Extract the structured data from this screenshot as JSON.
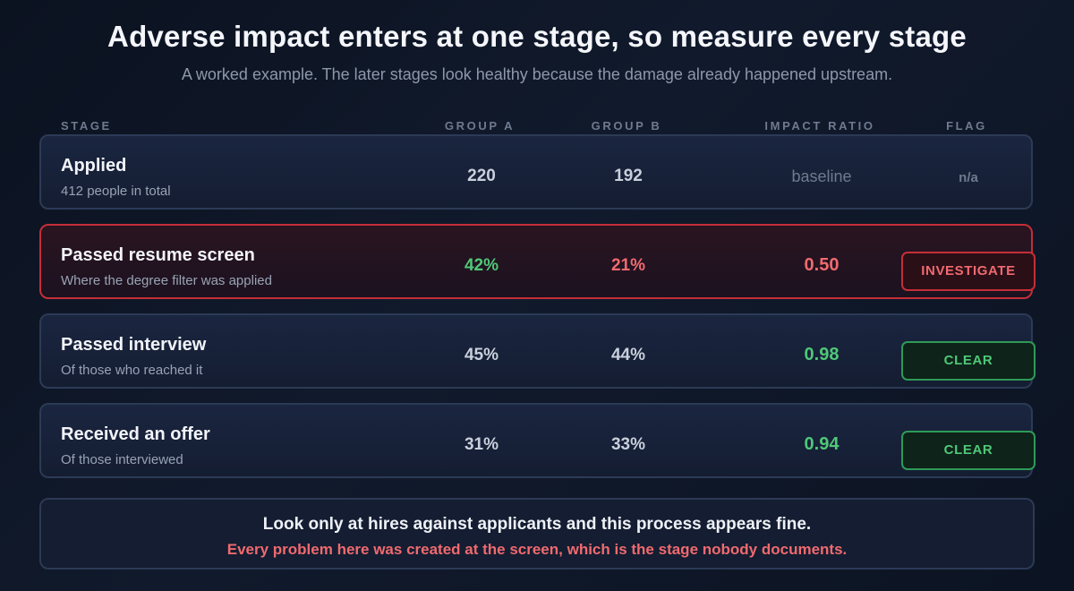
{
  "header": {
    "title": "Adverse impact enters at one stage, so measure every stage",
    "subtitle": "A worked example. The later stages look healthy because the damage already happened upstream."
  },
  "columns": {
    "stage": "STAGE",
    "group_a": "GROUP A",
    "group_b": "GROUP B",
    "impact_ratio": "IMPACT RATIO",
    "flag": "FLAG"
  },
  "rows": [
    {
      "name": "Applied",
      "description": "412 people in total",
      "group_a": "220",
      "group_b": "192",
      "impact_ratio": "baseline",
      "flag": "n/a"
    },
    {
      "name": "Passed resume screen",
      "description": "Where the degree filter was applied",
      "group_a": "42%",
      "group_b": "21%",
      "impact_ratio": "0.50",
      "flag": "INVESTIGATE"
    },
    {
      "name": "Passed interview",
      "description": "Of those who reached it",
      "group_a": "45%",
      "group_b": "44%",
      "impact_ratio": "0.98",
      "flag": "CLEAR"
    },
    {
      "name": "Received an offer",
      "description": "Of those interviewed",
      "group_a": "31%",
      "group_b": "33%",
      "impact_ratio": "0.94",
      "flag": "CLEAR"
    }
  ],
  "summary": {
    "line1": "Look only at hires against applicants and this process appears fine.",
    "line2": "Every problem here was created at the screen, which is the stage nobody documents."
  },
  "colors": {
    "alert": "#f06a6f",
    "ok": "#4fc878",
    "alert_border": "#c42e37",
    "ok_border": "#2e9a58"
  }
}
